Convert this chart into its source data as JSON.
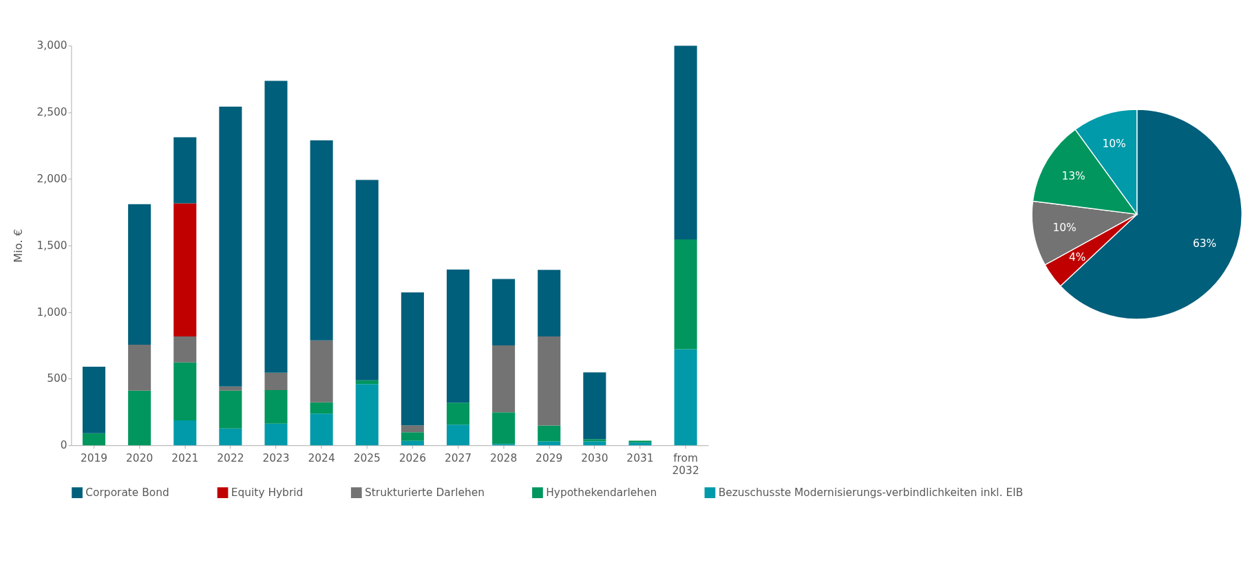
{
  "chart_data": [
    {
      "type": "bar",
      "stacked": true,
      "ylabel": "Mio. €",
      "ylim": [
        0,
        3000
      ],
      "yticks": [
        0,
        {
          "value": 500,
          "label": "500"
        },
        {
          "value": 1000,
          "label": "1,000"
        },
        {
          "value": 1500,
          "label": "1,500"
        },
        {
          "value": 2000,
          "label": "2,000"
        },
        {
          "value": 2500,
          "label": "2,500"
        },
        {
          "value": 3000,
          "label": "3,000"
        }
      ],
      "legend": "bottom",
      "categories": [
        "2019",
        "2020",
        "2021",
        "2022",
        "2023",
        "2024",
        "2025",
        "2026",
        "2027",
        "2028",
        "2029",
        "2030",
        "2031",
        "from 2032"
      ],
      "series": [
        {
          "name": "Bezuschusste Modernisierungs-verbindlichkeiten inkl. EIB",
          "color": "#009aaa",
          "values": [
            null,
            null,
            187,
            126,
            163,
            238,
            459,
            33,
            155,
            10,
            30,
            30,
            20,
            722
          ]
        },
        {
          "name": "Hypothekendarlehen",
          "color": "#00965e",
          "values": [
            90,
            410,
            435,
            285,
            252,
            85,
            29,
            65,
            165,
            238,
            118,
            17,
            15,
            823
          ]
        },
        {
          "name": "Strukturierte Darlehen",
          "color": "#737373",
          "values": [
            null,
            345,
            195,
            30,
            130,
            464,
            null,
            52,
            null,
            502,
            669,
            null,
            null,
            null
          ]
        },
        {
          "name": "Equity Hybrid",
          "color": "#c00000",
          "values": [
            null,
            null,
            1000,
            null,
            null,
            null,
            null,
            null,
            null,
            null,
            null,
            null,
            null,
            null
          ]
        },
        {
          "name": "Corporate Bond",
          "color": "#005f7b",
          "values": [
            500,
            1055,
            496,
            2102,
            2191,
            1502,
            1504,
            998,
            1000,
            498,
            500,
            500,
            null,
            1455
          ]
        }
      ]
    },
    {
      "type": "pie",
      "categories": [
        null,
        null,
        null,
        null,
        null
      ],
      "values": [
        63,
        4,
        10,
        13,
        10
      ],
      "colors": [
        "#005f7b",
        "#c00000",
        "#737373",
        "#00965e",
        "#009aaa"
      ],
      "value_labels": [
        "63%",
        "4%",
        "10%",
        "13%",
        "10%"
      ]
    }
  ]
}
